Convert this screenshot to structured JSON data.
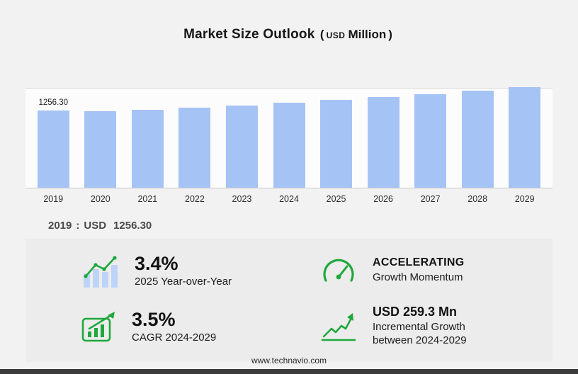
{
  "title": {
    "main": "Market Size Outlook",
    "paren_open": "(",
    "unit_small": "USD",
    "unit_big": "Million",
    "paren_close": ")"
  },
  "chart_data": {
    "type": "bar",
    "title": "Market Size Outlook (USD Million)",
    "categories": [
      "2019",
      "2020",
      "2021",
      "2022",
      "2023",
      "2024",
      "2025",
      "2026",
      "2027",
      "2028",
      "2029"
    ],
    "values": [
      1256.3,
      1247,
      1274,
      1306,
      1340,
      1381.5,
      1428.5,
      1478,
      1529,
      1583,
      1640.8
    ],
    "value_label_2019": "1256.30",
    "unit": "USD Million",
    "xlabel": "",
    "ylabel": "",
    "ylim": [
      0,
      1650
    ],
    "grid": true,
    "legend": false,
    "bar_color": "#a6c3f5"
  },
  "callout": {
    "year": "2019",
    "separator": ":",
    "currency": "USD",
    "value": "1256.30"
  },
  "stats": [
    {
      "icon": "growth-bars-icon",
      "value": "3.4%",
      "label": "2025 Year-over-Year"
    },
    {
      "icon": "speedometer-icon",
      "value": "ACCELERATING",
      "label": "Growth Momentum"
    },
    {
      "icon": "cagr-box-icon",
      "value": "3.5%",
      "label": "CAGR 2024-2029"
    },
    {
      "icon": "incremental-growth-icon",
      "value": "USD 259.3 Mn",
      "label": "Incremental Growth between 2024-2029"
    }
  ],
  "footer": {
    "url": "www.technavio.com"
  },
  "colors": {
    "bar_blue": "#a6c3f5",
    "icon_bar_blue": "#bdd4f8",
    "accent_green": "#1fa83c",
    "panel_gray": "#ececec",
    "bottom_bar": "#3c3c3c"
  }
}
